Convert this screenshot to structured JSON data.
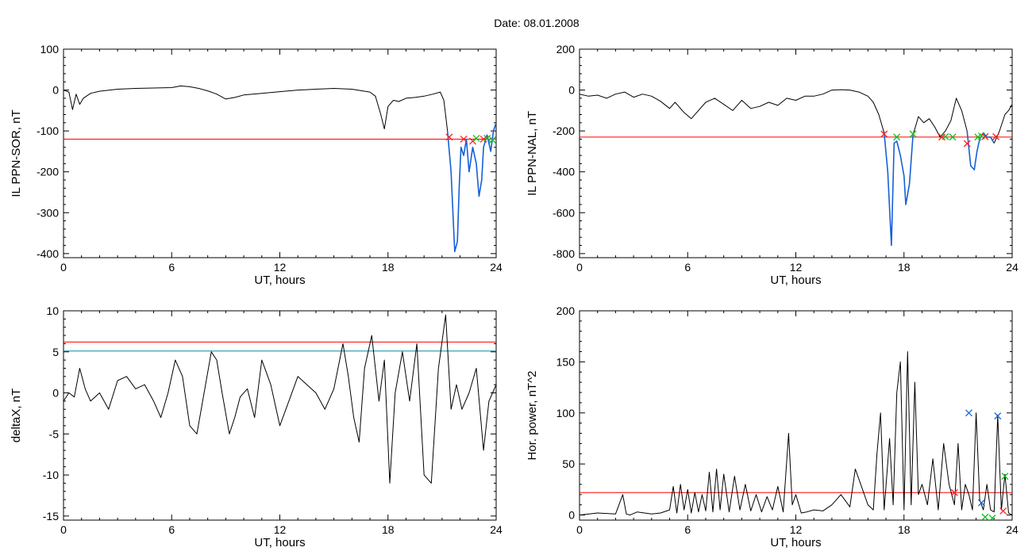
{
  "page": {
    "title": "Date:  08.01.2008"
  },
  "colors": {
    "trace": "#000000",
    "highlight": "#1560d8",
    "threshold": "#ff0000",
    "threshold2": "#0a8aa0",
    "marker_red": "#ff2020",
    "marker_green": "#10c020",
    "marker_blue": "#1a6ad0"
  },
  "chart_data": [
    {
      "id": "sor",
      "type": "line",
      "xlabel": "UT, hours",
      "ylabel": "IL PPN-SOR, nT",
      "xlim": [
        0,
        24
      ],
      "ylim": [
        -410,
        100
      ],
      "xticks": [
        "0",
        "6",
        "12",
        "18",
        "24"
      ],
      "yticks": [
        "100",
        "0",
        "-100",
        "-200",
        "-300",
        "-400"
      ],
      "threshold": -120,
      "series": [
        {
          "color": "#000000",
          "x": [
            0,
            0.3,
            0.5,
            0.7,
            0.9,
            1.1,
            1.5,
            2,
            3,
            4,
            5,
            6,
            6.5,
            7,
            7.5,
            8,
            8.5,
            9,
            9.5,
            10,
            11,
            12,
            13,
            14,
            15,
            16,
            17,
            17.3,
            17.6,
            17.8,
            18,
            18.3,
            18.6,
            19,
            19.5,
            20,
            20.5,
            20.9,
            21.1,
            21.3
          ],
          "y": [
            0,
            -5,
            -48,
            -10,
            -35,
            -20,
            -8,
            -3,
            2,
            4,
            5,
            6,
            10,
            8,
            4,
            -2,
            -10,
            -22,
            -18,
            -12,
            -8,
            -4,
            0,
            2,
            4,
            2,
            -5,
            -15,
            -60,
            -95,
            -40,
            -25,
            -28,
            -20,
            -18,
            -15,
            -10,
            -5,
            -25,
            -100
          ]
        },
        {
          "color": "#1560d8",
          "x": [
            21.3,
            21.5,
            21.7,
            21.85,
            21.95,
            22.05,
            22.2,
            22.35,
            22.5,
            22.7,
            22.9,
            23.05,
            23.2,
            23.3,
            23.5,
            23.7,
            23.85,
            24
          ],
          "y": [
            -100,
            -200,
            -395,
            -370,
            -240,
            -140,
            -160,
            -120,
            -200,
            -140,
            -180,
            -260,
            -220,
            -140,
            -110,
            -150,
            -100,
            -80
          ]
        }
      ],
      "markers": [
        {
          "x": 21.4,
          "y": -115,
          "color": "#ff2020"
        },
        {
          "x": 22.2,
          "y": -120,
          "color": "#ff2020"
        },
        {
          "x": 22.7,
          "y": -125,
          "color": "#ff2020"
        },
        {
          "x": 22.9,
          "y": -118,
          "color": "#10c020"
        },
        {
          "x": 23.3,
          "y": -120,
          "color": "#ff2020"
        },
        {
          "x": 23.5,
          "y": -118,
          "color": "#10c020"
        },
        {
          "x": 23.8,
          "y": -122,
          "color": "#10c020"
        }
      ]
    },
    {
      "id": "nal",
      "type": "line",
      "xlabel": "UT, hours",
      "ylabel": "IL PPN-NAL, nT",
      "xlim": [
        0,
        24
      ],
      "ylim": [
        -820,
        200
      ],
      "xticks": [
        "0",
        "6",
        "12",
        "18",
        "24"
      ],
      "yticks": [
        "200",
        "0",
        "-200",
        "-400",
        "-600",
        "-800"
      ],
      "threshold": -230,
      "series": [
        {
          "color": "#000000",
          "x": [
            0,
            0.5,
            1,
            1.5,
            2,
            2.5,
            3,
            3.5,
            4,
            4.5,
            5,
            5.3,
            5.8,
            6.2,
            6.5,
            7,
            7.5,
            8,
            8.5,
            9,
            9.5,
            10,
            10.5,
            11,
            11.5,
            12,
            12.5,
            13,
            13.5,
            14,
            14.5,
            15,
            15.5,
            16,
            16.3,
            16.6,
            16.9
          ],
          "y": [
            -20,
            -30,
            -25,
            -40,
            -20,
            -10,
            -35,
            -20,
            -30,
            -55,
            -90,
            -60,
            -110,
            -140,
            -110,
            -60,
            -40,
            -70,
            -100,
            -50,
            -90,
            -80,
            -60,
            -75,
            -40,
            -50,
            -30,
            -30,
            -20,
            0,
            2,
            0,
            -10,
            -30,
            -60,
            -120,
            -210
          ]
        },
        {
          "color": "#1560d8",
          "x": [
            16.9,
            17.1,
            17.3,
            17.45,
            17.6,
            17.8,
            18,
            18.1,
            18.3,
            18.5
          ],
          "y": [
            -210,
            -400,
            -760,
            -260,
            -250,
            -320,
            -420,
            -560,
            -460,
            -220
          ]
        },
        {
          "color": "#000000",
          "x": [
            18.5,
            18.8,
            19.1,
            19.4,
            19.7,
            20,
            20.3,
            20.6,
            20.9,
            21.2,
            21.5
          ],
          "y": [
            -220,
            -130,
            -160,
            -140,
            -180,
            -230,
            -200,
            -150,
            -40,
            -100,
            -200
          ]
        },
        {
          "color": "#1560d8",
          "x": [
            21.5,
            21.7,
            21.9,
            22.05,
            22.2,
            22.4,
            22.6,
            22.8,
            23
          ],
          "y": [
            -200,
            -370,
            -390,
            -300,
            -240,
            -210,
            -230,
            -230,
            -260
          ]
        },
        {
          "color": "#000000",
          "x": [
            23,
            23.3,
            23.6,
            23.8,
            24
          ],
          "y": [
            -260,
            -200,
            -120,
            -100,
            -70
          ]
        }
      ],
      "markers": [
        {
          "x": 16.9,
          "y": -215,
          "color": "#ff2020"
        },
        {
          "x": 17.6,
          "y": -230,
          "color": "#10c020"
        },
        {
          "x": 18.5,
          "y": -215,
          "color": "#10c020"
        },
        {
          "x": 20.1,
          "y": -230,
          "color": "#ff2020"
        },
        {
          "x": 20.3,
          "y": -228,
          "color": "#10c020"
        },
        {
          "x": 20.7,
          "y": -230,
          "color": "#10c020"
        },
        {
          "x": 21.5,
          "y": -262,
          "color": "#ff2020"
        },
        {
          "x": 22.1,
          "y": -230,
          "color": "#10c020"
        },
        {
          "x": 22.3,
          "y": -225,
          "color": "#10c020"
        },
        {
          "x": 22.5,
          "y": -228,
          "color": "#ff2020"
        },
        {
          "x": 23.1,
          "y": -228,
          "color": "#ff2020"
        }
      ]
    },
    {
      "id": "deltax",
      "type": "line",
      "xlabel": "UT, hours",
      "ylabel": "deltaX, nT",
      "xlim": [
        0,
        24
      ],
      "ylim": [
        -15.5,
        10
      ],
      "xticks": [
        "0",
        "6",
        "12",
        "18",
        "24"
      ],
      "yticks": [
        "10",
        "5",
        "0",
        "-5",
        "-10",
        "-15"
      ],
      "threshold": 6.2,
      "threshold2": 5.1,
      "series": [
        {
          "color": "#000000",
          "x": [
            0,
            0.3,
            0.6,
            0.9,
            1.2,
            1.5,
            2,
            2.5,
            3,
            3.5,
            4,
            4.5,
            5,
            5.4,
            5.8,
            6.2,
            6.6,
            7,
            7.4,
            7.8,
            8.2,
            8.5,
            8.8,
            9.2,
            9.5,
            9.8,
            10.2,
            10.6,
            11,
            11.5,
            12,
            12.5,
            13,
            13.5,
            14,
            14.5,
            15,
            15.5,
            15.8,
            16.1,
            16.4,
            16.7,
            17.1,
            17.5,
            17.8,
            18.1,
            18.4,
            18.8,
            19.2,
            19.6,
            20,
            20.4,
            20.8,
            21.2,
            21.5,
            21.8,
            22.1,
            22.5,
            22.9,
            23.3,
            23.6,
            24
          ],
          "y": [
            -1,
            0,
            -0.5,
            3,
            0.5,
            -1,
            0,
            -2,
            1.5,
            2,
            0.5,
            1,
            -1,
            -3,
            0,
            4,
            2,
            -4,
            -5,
            0,
            5,
            4,
            0,
            -5,
            -3,
            -0.5,
            0.5,
            -3,
            4,
            1,
            -4,
            -1,
            2,
            1,
            0,
            -2,
            0.5,
            6,
            2,
            -3,
            -6,
            3,
            7,
            -1,
            4,
            -11,
            0,
            5,
            -1,
            6,
            -10,
            -11,
            3,
            9.5,
            -2,
            1,
            -2,
            0,
            3,
            -7,
            -1,
            1
          ]
        }
      ]
    },
    {
      "id": "power",
      "type": "line",
      "xlabel": "UT, hours",
      "ylabel": "Hor. power, nT^2",
      "xlim": [
        0,
        24
      ],
      "ylim": [
        -5,
        200
      ],
      "xticks": [
        "0",
        "6",
        "12",
        "18",
        "24"
      ],
      "yticks": [
        "200",
        "150",
        "100",
        "50",
        "0"
      ],
      "threshold": 22,
      "series": [
        {
          "color": "#000000",
          "x": [
            0,
            1,
            2,
            2.4,
            2.6,
            2.8,
            3.2,
            4,
            4.5,
            5,
            5.2,
            5.4,
            5.6,
            5.8,
            6,
            6.2,
            6.4,
            6.6,
            6.8,
            7,
            7.2,
            7.4,
            7.6,
            7.8,
            8,
            8.3,
            8.6,
            8.9,
            9.2,
            9.5,
            9.8,
            10.1,
            10.4,
            10.7,
            11,
            11.3,
            11.6,
            11.8,
            12,
            12.3,
            12.6,
            13,
            13.5,
            14,
            14.5,
            15,
            15.3,
            15.6,
            16,
            16.3,
            16.5,
            16.7,
            16.9,
            17.2,
            17.4,
            17.6,
            17.8,
            18,
            18.2,
            18.4,
            18.6,
            18.8,
            19,
            19.3,
            19.6,
            19.9,
            20.2,
            20.5,
            20.8,
            21,
            21.2,
            21.4,
            21.6,
            21.8,
            22,
            22.2,
            22.4,
            22.6,
            22.8,
            23,
            23.2,
            23.4,
            23.6,
            23.8,
            24
          ],
          "y": [
            0,
            2,
            1,
            20,
            1,
            0,
            3,
            1,
            2,
            5,
            28,
            2,
            30,
            5,
            25,
            2,
            22,
            3,
            20,
            4,
            42,
            3,
            45,
            5,
            40,
            3,
            38,
            5,
            30,
            4,
            20,
            3,
            18,
            5,
            28,
            3,
            80,
            10,
            20,
            2,
            3,
            5,
            4,
            10,
            20,
            8,
            45,
            30,
            10,
            5,
            60,
            100,
            5,
            75,
            10,
            120,
            150,
            5,
            160,
            10,
            130,
            20,
            30,
            10,
            55,
            5,
            70,
            30,
            10,
            70,
            5,
            30,
            20,
            5,
            100,
            15,
            5,
            30,
            5,
            3,
            98,
            5,
            40,
            2,
            0
          ]
        }
      ],
      "markers": [
        {
          "x": 21.6,
          "y": 100,
          "color": "#1a6ad0"
        },
        {
          "x": 22.3,
          "y": 12,
          "color": "#1a6ad0"
        },
        {
          "x": 23.2,
          "y": 97,
          "color": "#1a6ad0"
        },
        {
          "x": 23.6,
          "y": 38,
          "color": "#10c020"
        },
        {
          "x": 22.5,
          "y": -2,
          "color": "#10c020"
        },
        {
          "x": 23.5,
          "y": 4,
          "color": "#ff2020"
        },
        {
          "x": 20.8,
          "y": 22,
          "color": "#ff2020"
        },
        {
          "x": 22.9,
          "y": -3,
          "color": "#10c020"
        }
      ]
    }
  ]
}
